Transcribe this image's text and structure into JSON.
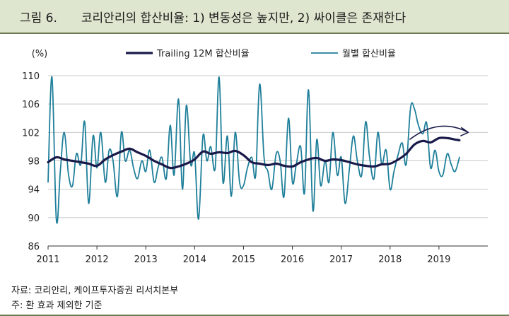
{
  "header": {
    "figure_number": "그림 6.",
    "title": "코리안리의 합산비율: 1) 변동성은 높지만, 2) 싸이클은 존재한다"
  },
  "footer": {
    "source": "자료: 코리안리, 케이프투자증권 리서치본부",
    "note": "주: 환 효과 제외한 기준"
  },
  "colors": {
    "trailing": "#1a1a4a",
    "monthly": "#1f7f9a",
    "grid": "#c8c8c8",
    "axis": "#333333",
    "header_bg": "#dfe6cf"
  },
  "chart_data": {
    "type": "line",
    "ylabel": "(%)",
    "ylim": [
      86,
      110
    ],
    "yticks": [
      86,
      90,
      94,
      98,
      102,
      106,
      110
    ],
    "xlim": [
      2011,
      2020
    ],
    "xticks": [
      2011,
      2012,
      2013,
      2014,
      2015,
      2016,
      2017,
      2018,
      2019
    ],
    "grid": true,
    "legend_position": "top",
    "series": [
      {
        "name": "Trailing 12M 합산비율",
        "x": [
          2011.0,
          2011.17,
          2011.33,
          2011.5,
          2011.67,
          2011.83,
          2012.0,
          2012.17,
          2012.33,
          2012.5,
          2012.67,
          2012.83,
          2013.0,
          2013.17,
          2013.33,
          2013.5,
          2013.67,
          2013.83,
          2014.0,
          2014.17,
          2014.33,
          2014.5,
          2014.67,
          2014.83,
          2015.0,
          2015.17,
          2015.33,
          2015.5,
          2015.67,
          2015.83,
          2016.0,
          2016.17,
          2016.33,
          2016.5,
          2016.67,
          2016.83,
          2017.0,
          2017.17,
          2017.33,
          2017.5,
          2017.67,
          2017.83,
          2018.0,
          2018.17,
          2018.33,
          2018.5,
          2018.67,
          2018.83,
          2019.0,
          2019.17,
          2019.33,
          2019.42
        ],
        "y": [
          97.8,
          98.5,
          98.2,
          98.0,
          97.8,
          97.6,
          97.3,
          98.2,
          98.8,
          99.3,
          99.7,
          99.2,
          98.7,
          98.0,
          97.5,
          97.0,
          97.2,
          97.6,
          98.2,
          99.3,
          99.0,
          99.2,
          99.1,
          99.4,
          98.8,
          97.8,
          97.6,
          97.4,
          97.6,
          97.3,
          97.2,
          97.8,
          98.2,
          98.4,
          98.0,
          98.2,
          98.1,
          97.8,
          97.5,
          97.3,
          97.2,
          97.5,
          97.6,
          98.2,
          99.0,
          100.3,
          100.8,
          100.6,
          101.2,
          101.2,
          101.0,
          100.9
        ]
      },
      {
        "name": "월별 합산비율",
        "x": [
          2011.0,
          2011.08,
          2011.17,
          2011.25,
          2011.33,
          2011.42,
          2011.5,
          2011.58,
          2011.67,
          2011.75,
          2011.83,
          2011.92,
          2012.0,
          2012.08,
          2012.17,
          2012.25,
          2012.33,
          2012.42,
          2012.5,
          2012.58,
          2012.67,
          2012.75,
          2012.83,
          2012.92,
          2013.0,
          2013.08,
          2013.17,
          2013.25,
          2013.33,
          2013.42,
          2013.5,
          2013.58,
          2013.67,
          2013.75,
          2013.83,
          2013.92,
          2014.0,
          2014.08,
          2014.17,
          2014.25,
          2014.33,
          2014.42,
          2014.5,
          2014.58,
          2014.67,
          2014.75,
          2014.83,
          2014.92,
          2015.0,
          2015.08,
          2015.17,
          2015.25,
          2015.33,
          2015.42,
          2015.5,
          2015.58,
          2015.67,
          2015.75,
          2015.83,
          2015.92,
          2016.0,
          2016.08,
          2016.17,
          2016.25,
          2016.33,
          2016.42,
          2016.5,
          2016.58,
          2016.67,
          2016.75,
          2016.83,
          2016.92,
          2017.0,
          2017.08,
          2017.17,
          2017.25,
          2017.33,
          2017.42,
          2017.5,
          2017.58,
          2017.67,
          2017.75,
          2017.83,
          2017.92,
          2018.0,
          2018.08,
          2018.17,
          2018.25,
          2018.33,
          2018.42,
          2018.5,
          2018.58,
          2018.67,
          2018.75,
          2018.83,
          2018.92,
          2019.0,
          2019.08,
          2019.17,
          2019.25,
          2019.33,
          2019.42
        ],
        "y": [
          95.0,
          109.8,
          89.7,
          96.5,
          102.0,
          96.0,
          94.5,
          99.0,
          97.5,
          103.5,
          92.0,
          101.5,
          97.0,
          102.0,
          95.0,
          99.5,
          98.0,
          93.0,
          102.0,
          98.0,
          99.5,
          97.0,
          95.5,
          98.0,
          96.5,
          99.5,
          95.0,
          97.0,
          98.5,
          95.5,
          103.0,
          96.0,
          106.7,
          94.0,
          105.8,
          97.5,
          99.0,
          89.8,
          101.5,
          98.0,
          100.0,
          97.0,
          109.8,
          95.0,
          101.5,
          93.0,
          102.0,
          95.0,
          94.5,
          97.0,
          98.5,
          96.0,
          108.8,
          98.5,
          96.5,
          94.0,
          99.0,
          98.0,
          93.0,
          104.0,
          95.0,
          97.5,
          100.0,
          93.5,
          108.0,
          91.0,
          101.0,
          94.5,
          98.0,
          95.0,
          102.0,
          96.0,
          98.5,
          92.0,
          97.0,
          101.5,
          98.0,
          96.0,
          103.5,
          98.5,
          95.5,
          102.0,
          97.5,
          99.5,
          94.0,
          96.5,
          99.0,
          100.5,
          97.5,
          105.5,
          105.3,
          103.0,
          101.8,
          103.3,
          97.0,
          99.5,
          96.5,
          96.0,
          99.0,
          97.5,
          96.5,
          98.5
        ]
      }
    ],
    "annotation": {
      "type": "arrow",
      "from": [
        2018.4,
        101.0
      ],
      "to": [
        2019.6,
        102.0
      ]
    }
  }
}
